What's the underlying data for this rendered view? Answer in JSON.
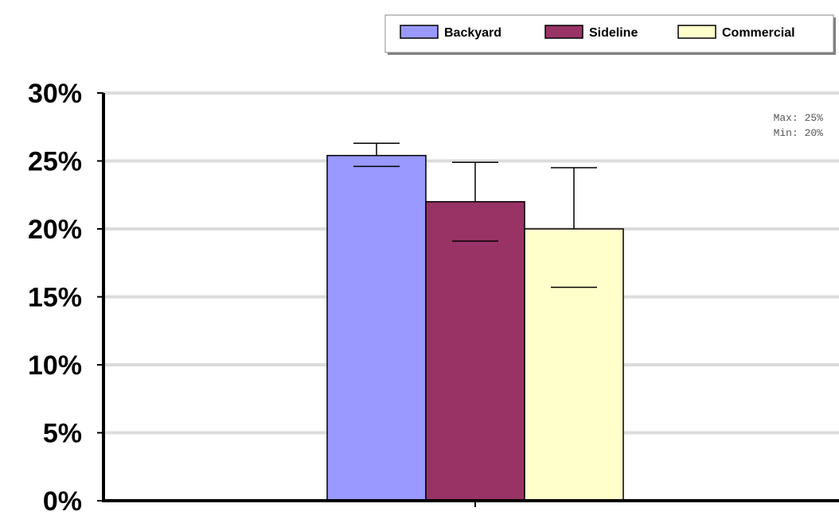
{
  "chart_data": {
    "type": "bar",
    "categories": [
      ""
    ],
    "series": [
      {
        "name": "Backyard",
        "color": "#9999ff",
        "values": [
          25.4
        ],
        "err_low": [
          24.6
        ],
        "err_high": [
          26.3
        ]
      },
      {
        "name": "Sideline",
        "color": "#993366",
        "values": [
          22.0
        ],
        "err_low": [
          19.1
        ],
        "err_high": [
          24.9
        ]
      },
      {
        "name": "Commercial",
        "color": "#ffffcc",
        "values": [
          20.0
        ],
        "err_low": [
          15.7
        ],
        "err_high": [
          24.5
        ]
      }
    ],
    "ylim": [
      0,
      30
    ],
    "ytick_values": [
      0,
      5,
      10,
      15,
      20,
      25,
      30
    ],
    "ytick_labels": [
      "0%",
      "5%",
      "10%",
      "15%",
      "20%",
      "25%",
      "30%"
    ],
    "grid": true,
    "legend_position": "top-right",
    "stats": {
      "max": "Max: 25%",
      "min": "Min: 20%"
    }
  }
}
